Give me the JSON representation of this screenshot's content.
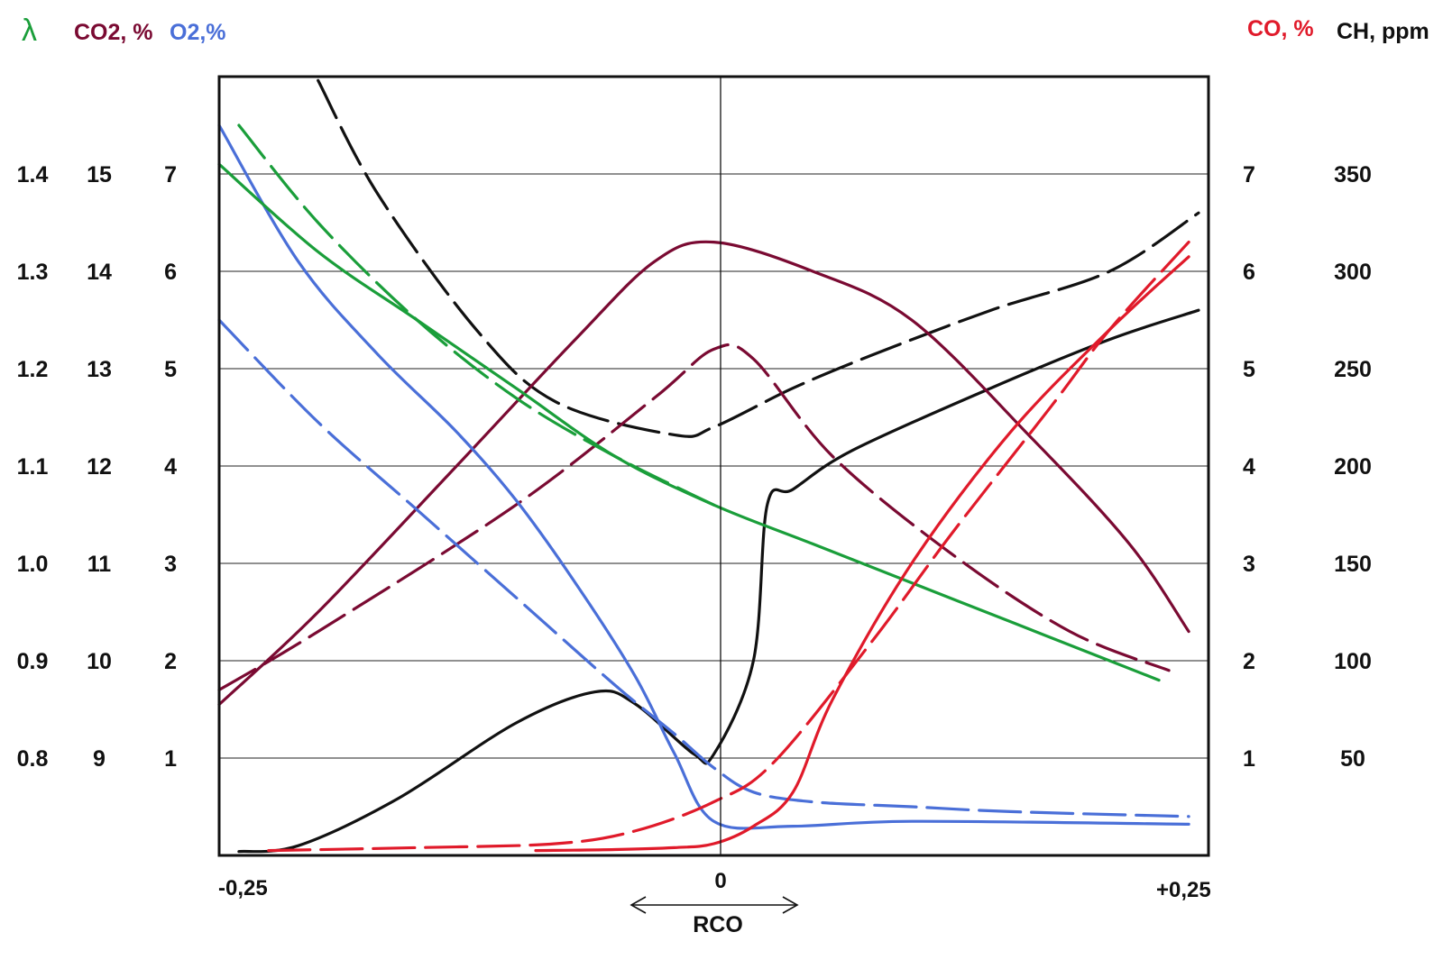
{
  "chart_data": {
    "type": "line",
    "x_axis": {
      "title": "RCO",
      "ticks": [
        "-0,25",
        "0",
        "+0,25"
      ],
      "range": [
        -0.25,
        0.25
      ]
    },
    "left_axes": [
      {
        "title": "λ",
        "color": "#1a9e3a",
        "ticks": [
          "1.4",
          "1.3",
          "1.2",
          "1.1",
          "1.0",
          "0.9",
          "0.8"
        ],
        "values": [
          1.4,
          1.3,
          1.2,
          1.1,
          1.0,
          0.9,
          0.8
        ]
      },
      {
        "title": "CO2, %",
        "color": "#7a0a32",
        "ticks": [
          "15",
          "14",
          "13",
          "12",
          "11",
          "10",
          "9"
        ],
        "values": [
          15,
          14,
          13,
          12,
          11,
          10,
          9
        ]
      },
      {
        "title": "O2,%",
        "color": "#4a6fd8",
        "ticks": [
          "7",
          "6",
          "5",
          "4",
          "3",
          "2",
          "1"
        ],
        "values": [
          7,
          6,
          5,
          4,
          3,
          2,
          1
        ]
      }
    ],
    "right_axes": [
      {
        "title": "CO, %",
        "color": "#e01a2a",
        "ticks": [
          "7",
          "6",
          "5",
          "4",
          "3",
          "2",
          "1"
        ],
        "values": [
          7,
          6,
          5,
          4,
          3,
          2,
          1
        ]
      },
      {
        "title": "CH, ppm",
        "color": "#111111",
        "ticks": [
          "350",
          "300",
          "250",
          "200",
          "150",
          "100",
          "50"
        ],
        "values": [
          350,
          300,
          250,
          200,
          150,
          100,
          50
        ]
      }
    ],
    "grid": true,
    "y_range_o2": [
      0,
      8
    ],
    "series": [
      {
        "color": "#111111",
        "dash": false,
        "axis": "CH, ppm",
        "x": [
          -0.24,
          -0.21,
          -0.16,
          -0.1,
          -0.06,
          -0.04,
          -0.01,
          0.0,
          0.02,
          0.027,
          0.04,
          0.07,
          0.14,
          0.2,
          0.245
        ],
        "y": [
          2,
          5,
          29,
          68,
          84,
          78,
          52,
          52,
          100,
          180,
          188,
          208,
          240,
          265,
          280
        ]
      },
      {
        "color": "#111111",
        "dash": true,
        "axis": "CH, ppm",
        "x": [
          -0.2,
          -0.17,
          -0.12,
          -0.08,
          -0.02,
          0.0,
          0.04,
          0.08,
          0.14,
          0.2,
          0.245
        ],
        "y": [
          398,
          340,
          270,
          233,
          216,
          220,
          240,
          257,
          280,
          300,
          330
        ]
      },
      {
        "color": "#7a0a32",
        "dash": false,
        "axis": "CO2, %",
        "x": [
          -0.25,
          -0.2,
          -0.13,
          -0.07,
          -0.03,
          0.0,
          0.05,
          0.1,
          0.16,
          0.21,
          0.24
        ],
        "y": [
          9.55,
          10.5,
          12.0,
          13.3,
          14.1,
          14.3,
          14.0,
          13.5,
          12.3,
          11.2,
          10.3
        ]
      },
      {
        "color": "#7a0a32",
        "dash": true,
        "axis": "CO2, %",
        "x": [
          -0.25,
          -0.2,
          -0.1,
          -0.03,
          0.0,
          0.02,
          0.06,
          0.12,
          0.18,
          0.23
        ],
        "y": [
          9.7,
          10.3,
          11.6,
          12.7,
          13.2,
          13.1,
          12.1,
          11.1,
          10.3,
          9.9
        ]
      },
      {
        "color": "#4a6fd8",
        "dash": false,
        "axis": "O2,%",
        "x": [
          -0.25,
          -0.21,
          -0.17,
          -0.13,
          -0.1,
          -0.07,
          -0.04,
          -0.02,
          0.0,
          0.04,
          0.1,
          0.24
        ],
        "y": [
          7.5,
          6.1,
          5.15,
          4.35,
          3.65,
          2.8,
          1.85,
          1.05,
          0.35,
          0.3,
          0.35,
          0.32
        ]
      },
      {
        "color": "#4a6fd8",
        "dash": true,
        "axis": "O2,%",
        "x": [
          -0.25,
          -0.2,
          -0.15,
          -0.1,
          -0.05,
          -0.02,
          0.0,
          0.02,
          0.05,
          0.1,
          0.15,
          0.24
        ],
        "y": [
          5.5,
          4.45,
          3.55,
          2.65,
          1.75,
          1.25,
          0.9,
          0.65,
          0.55,
          0.5,
          0.45,
          0.4
        ]
      },
      {
        "color": "#1a9e3a",
        "dash": false,
        "axis": "λ",
        "x": [
          -0.25,
          -0.2,
          -0.15,
          -0.1,
          -0.05,
          0.0,
          0.05,
          0.1,
          0.15,
          0.2,
          0.225
        ],
        "y": [
          1.41,
          1.32,
          1.25,
          1.18,
          1.11,
          1.06,
          1.02,
          0.98,
          0.94,
          0.9,
          0.88
        ]
      },
      {
        "color": "#1a9e3a",
        "dash": true,
        "axis": "λ",
        "x": [
          -0.24,
          -0.2,
          -0.15,
          -0.1,
          -0.05,
          0.0
        ],
        "y": [
          1.45,
          1.35,
          1.25,
          1.17,
          1.11,
          1.06
        ]
      },
      {
        "color": "#e01a2a",
        "dash": false,
        "axis": "CO, %",
        "x": [
          -0.09,
          -0.05,
          -0.02,
          0.0,
          0.02,
          0.04,
          0.06,
          0.1,
          0.15,
          0.2,
          0.24
        ],
        "y": [
          0.05,
          0.06,
          0.08,
          0.12,
          0.3,
          0.65,
          1.6,
          3.0,
          4.35,
          5.4,
          6.15
        ]
      },
      {
        "color": "#e01a2a",
        "dash": true,
        "axis": "CO, %",
        "x": [
          -0.225,
          -0.15,
          -0.08,
          -0.04,
          0.0,
          0.03,
          0.08,
          0.12,
          0.17,
          0.2,
          0.24
        ],
        "y": [
          0.05,
          0.08,
          0.12,
          0.25,
          0.55,
          0.95,
          2.2,
          3.3,
          4.6,
          5.4,
          6.3
        ]
      }
    ]
  }
}
